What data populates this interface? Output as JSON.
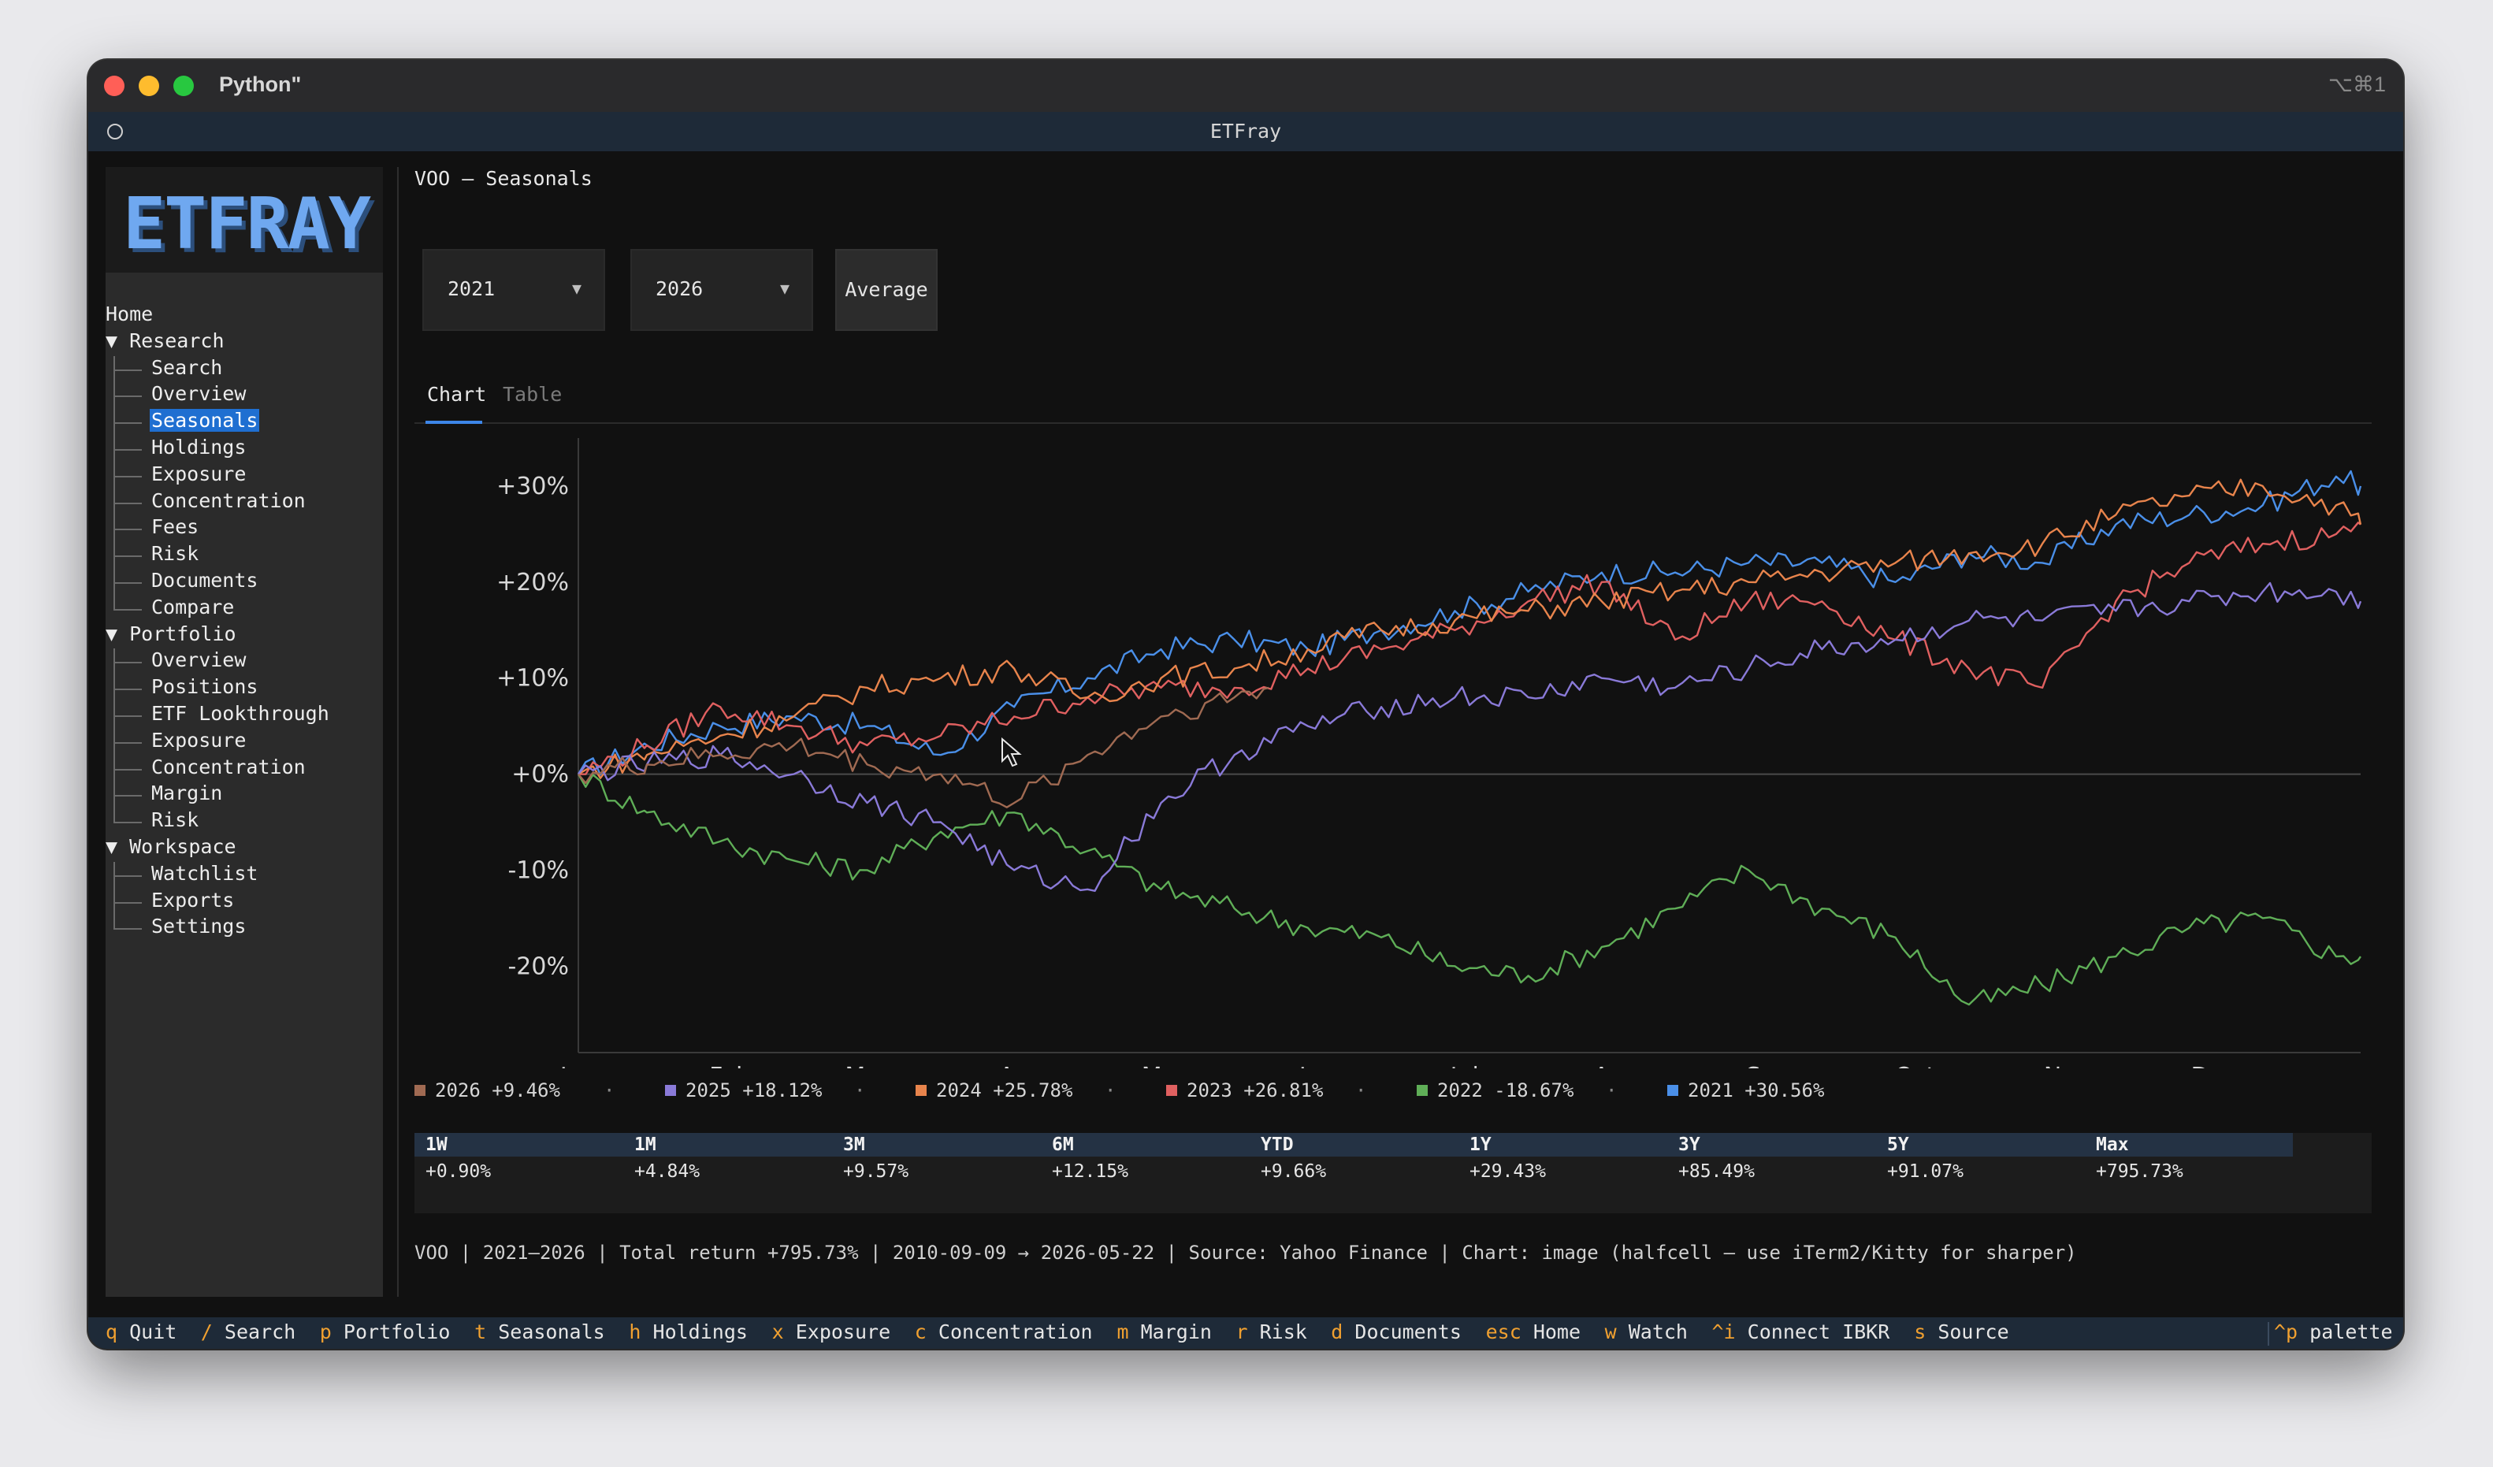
{
  "window": {
    "title": "Python\"",
    "shortcut": "⌥⌘1"
  },
  "app": {
    "title": "ETFray",
    "logo": "ETFRAY"
  },
  "sidebar": {
    "home": "Home",
    "sections": [
      {
        "label": "Research",
        "items": [
          "Search",
          "Overview",
          "Seasonals",
          "Holdings",
          "Exposure",
          "Concentration",
          "Fees",
          "Risk",
          "Documents",
          "Compare"
        ]
      },
      {
        "label": "Portfolio",
        "items": [
          "Overview",
          "Positions",
          "ETF Lookthrough",
          "Exposure",
          "Concentration",
          "Margin",
          "Risk"
        ]
      },
      {
        "label": "Workspace",
        "items": [
          "Watchlist",
          "Exports",
          "Settings"
        ]
      }
    ],
    "active": "Seasonals"
  },
  "page": {
    "breadcrumb": "VOO – Seasonals"
  },
  "controls": {
    "start_year": "2021",
    "end_year": "2026",
    "average_label": "Average",
    "caret": "▼"
  },
  "tabs": {
    "chart": "Chart",
    "table": "Table"
  },
  "chart_data": {
    "type": "line",
    "title": "",
    "xlabel": "",
    "ylabel": "",
    "x_categories": [
      "Jan",
      "Feb",
      "Mar",
      "Apr",
      "May",
      "Jun",
      "Jul",
      "Aug",
      "Sep",
      "Oct",
      "Nov",
      "Dec"
    ],
    "x_unit": "day of year",
    "xlim": [
      1,
      365
    ],
    "ylim": [
      -29,
      35
    ],
    "y_ticks": [
      -20,
      -10,
      0,
      10,
      20,
      30
    ],
    "y_tick_labels": [
      "-20%",
      "-10%",
      "+0%",
      "+10%",
      "+20%",
      "+30%"
    ],
    "zero_line": true,
    "series": [
      {
        "name": "2021",
        "color": "#4a8fe8",
        "x": [
          1,
          15,
          30,
          45,
          60,
          75,
          90,
          105,
          120,
          135,
          150,
          165,
          180,
          195,
          210,
          225,
          240,
          255,
          270,
          285,
          300,
          315,
          330,
          345,
          360,
          365
        ],
        "y": [
          0,
          3,
          5,
          6,
          5,
          2,
          7,
          10,
          13,
          14,
          13,
          15,
          17,
          19,
          21,
          21,
          22,
          22,
          20,
          23,
          22,
          26,
          27,
          28,
          31,
          30
        ]
      },
      {
        "name": "2022",
        "color": "#5fae57",
        "x": [
          1,
          15,
          30,
          45,
          60,
          75,
          90,
          105,
          120,
          135,
          150,
          165,
          180,
          195,
          210,
          225,
          240,
          255,
          270,
          285,
          300,
          315,
          330,
          345,
          360,
          365
        ],
        "y": [
          0,
          -4,
          -7,
          -9,
          -10,
          -6,
          -4,
          -8,
          -12,
          -14,
          -16,
          -17,
          -20,
          -21,
          -18,
          -14,
          -10,
          -14,
          -17,
          -24,
          -22,
          -19,
          -16,
          -15,
          -19,
          -19
        ]
      },
      {
        "name": "2023",
        "color": "#e06060",
        "x": [
          1,
          15,
          30,
          45,
          60,
          75,
          90,
          105,
          120,
          135,
          150,
          165,
          180,
          195,
          210,
          225,
          240,
          255,
          270,
          285,
          300,
          315,
          330,
          345,
          360,
          365
        ],
        "y": [
          0,
          3,
          7,
          5,
          3,
          4,
          6,
          8,
          9,
          9,
          11,
          13,
          15,
          18,
          20,
          14,
          18,
          18,
          14,
          11,
          9,
          18,
          22,
          24,
          25,
          26
        ]
      },
      {
        "name": "2024",
        "color": "#e8844c",
        "x": [
          1,
          15,
          30,
          45,
          60,
          75,
          90,
          105,
          120,
          135,
          150,
          165,
          180,
          195,
          210,
          225,
          240,
          255,
          270,
          285,
          300,
          315,
          330,
          345,
          360,
          365
        ],
        "y": [
          0,
          2,
          4,
          6,
          9,
          10,
          11,
          8,
          10,
          11,
          13,
          15,
          16,
          17,
          18,
          19,
          20,
          21,
          22,
          23,
          24,
          27,
          29,
          30,
          28,
          26
        ]
      },
      {
        "name": "2025",
        "color": "#8a7ad8",
        "x": [
          1,
          15,
          30,
          45,
          60,
          75,
          90,
          105,
          120,
          135,
          150,
          165,
          180,
          195,
          210,
          225,
          240,
          255,
          270,
          285,
          300,
          315,
          330,
          345,
          360,
          365
        ],
        "y": [
          0,
          1,
          2,
          0,
          -3,
          -5,
          -10,
          -12,
          -3,
          2,
          5,
          7,
          8,
          8,
          10,
          9,
          11,
          13,
          14,
          16,
          16,
          17,
          18,
          19,
          19,
          18
        ]
      },
      {
        "name": "2026",
        "color": "#a06a52",
        "x": [
          1,
          15,
          30,
          45,
          60,
          75,
          90,
          105,
          120,
          135,
          142
        ],
        "y": [
          0,
          1,
          2,
          3,
          1,
          0,
          -3,
          2,
          6,
          8,
          9
        ]
      }
    ]
  },
  "legend": [
    {
      "label": "2026 +9.46%",
      "color": "#a06a52"
    },
    {
      "label": "2025 +18.12%",
      "color": "#8a7ad8"
    },
    {
      "label": "2024 +25.78%",
      "color": "#e8844c"
    },
    {
      "label": "2023 +26.81%",
      "color": "#e06060"
    },
    {
      "label": "2022 -18.67%",
      "color": "#5fae57"
    },
    {
      "label": "2021 +30.56%",
      "color": "#4a8fe8"
    }
  ],
  "legend_separator": "·",
  "performance": {
    "headers": [
      "1W",
      "1M",
      "3M",
      "6M",
      "YTD",
      "1Y",
      "3Y",
      "5Y",
      "Max"
    ],
    "values": [
      "+0.90%",
      "+4.84%",
      "+9.57%",
      "+12.15%",
      "+9.66%",
      "+29.43%",
      "+85.49%",
      "+91.07%",
      "+795.73%"
    ]
  },
  "footer_info": "VOO | 2021–2026 | Total return +795.73% | 2010-09-09 → 2026-05-22 | Source: Yahoo Finance | Chart: image (halfcell – use iTerm2/Kitty for sharper)",
  "statusbar": {
    "shortcuts": [
      {
        "key": "q",
        "label": "Quit"
      },
      {
        "key": "/",
        "label": "Search"
      },
      {
        "key": "p",
        "label": "Portfolio"
      },
      {
        "key": "t",
        "label": "Seasonals"
      },
      {
        "key": "h",
        "label": "Holdings"
      },
      {
        "key": "x",
        "label": "Exposure"
      },
      {
        "key": "c",
        "label": "Concentration"
      },
      {
        "key": "m",
        "label": "Margin"
      },
      {
        "key": "r",
        "label": "Risk"
      },
      {
        "key": "d",
        "label": "Documents"
      },
      {
        "key": "esc",
        "label": "Home"
      },
      {
        "key": "w",
        "label": "Watch"
      },
      {
        "key": "^i",
        "label": "Connect IBKR"
      },
      {
        "key": "s",
        "label": "Source"
      }
    ],
    "palette": {
      "key": "^p",
      "label": "palette"
    }
  }
}
